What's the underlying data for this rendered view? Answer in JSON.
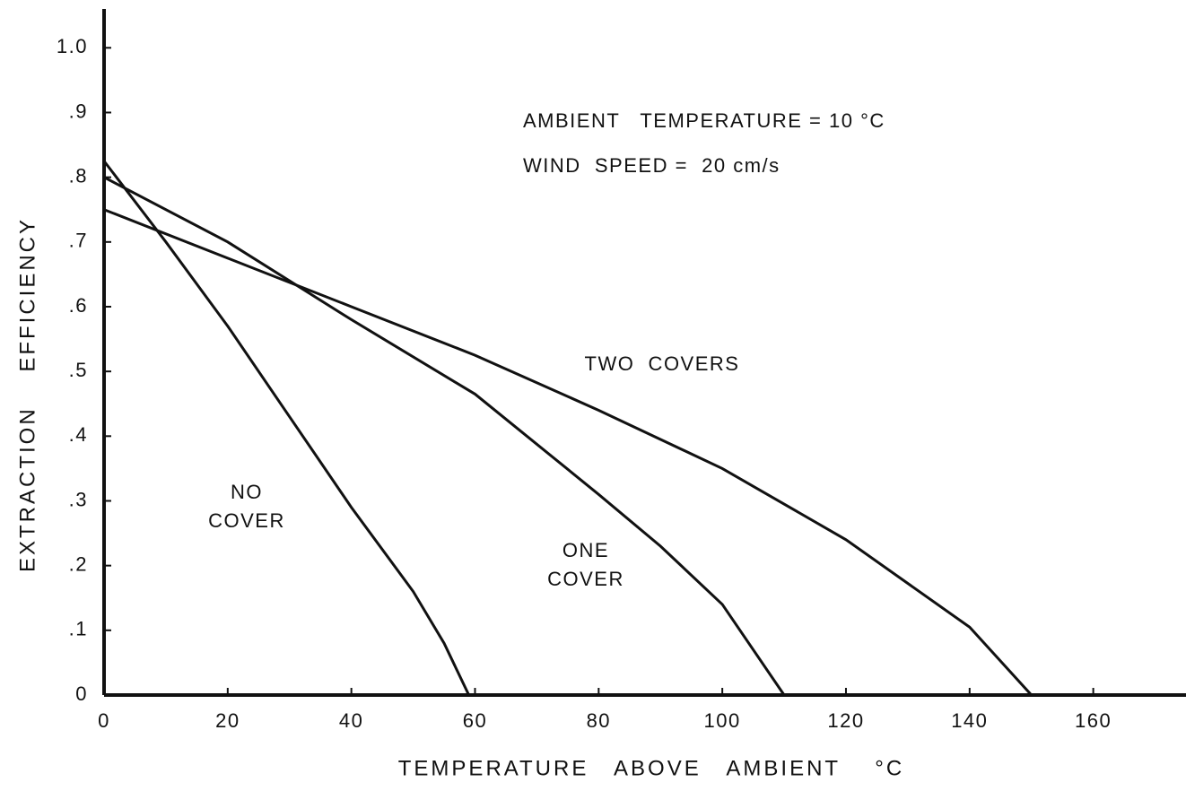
{
  "chart_data": {
    "type": "line",
    "xlabel": "TEMPERATURE   ABOVE   AMBIENT    °C",
    "ylabel": "EXTRACTION    EFFICIENCY",
    "xlim": [
      0,
      175
    ],
    "ylim": [
      0,
      1.06
    ],
    "xticks": [
      0,
      20,
      40,
      60,
      80,
      100,
      120,
      140,
      160
    ],
    "yticks": [
      0,
      {
        "value": 0.1,
        "label": ".1"
      },
      {
        "value": 0.2,
        "label": ".2"
      },
      {
        "value": 0.3,
        "label": ".3"
      },
      {
        "value": 0.4,
        "label": ".4"
      },
      {
        "value": 0.5,
        "label": ".5"
      },
      {
        "value": 0.6,
        "label": ".6"
      },
      {
        "value": 0.7,
        "label": ".7"
      },
      {
        "value": 0.8,
        "label": ".8"
      },
      {
        "value": 0.9,
        "label": ".9"
      },
      {
        "value": 1.0,
        "label": "1.0"
      }
    ],
    "grid": false,
    "series": [
      {
        "color": "#111111",
        "x": [
          0,
          10,
          20,
          30,
          40,
          50,
          55,
          59
        ],
        "values": [
          0.825,
          0.7,
          0.57,
          0.43,
          0.29,
          0.16,
          0.08,
          0
        ]
      },
      {
        "color": "#111111",
        "x": [
          0,
          20,
          40,
          60,
          80,
          90,
          100,
          110
        ],
        "values": [
          0.8,
          0.7,
          0.58,
          0.465,
          0.31,
          0.23,
          0.14,
          0
        ]
      },
      {
        "color": "#111111",
        "x": [
          0,
          20,
          40,
          60,
          80,
          100,
          120,
          140,
          150
        ],
        "values": [
          0.75,
          0.675,
          0.6,
          0.525,
          0.44,
          0.35,
          0.24,
          0.105,
          0
        ]
      }
    ],
    "annotations": [
      "AMBIENT   TEMPERATURE = 10 °C",
      "WIND  SPEED =  20 cm/s",
      "TWO  COVERS",
      "NO",
      "COVER",
      "ONE",
      "COVER"
    ]
  }
}
